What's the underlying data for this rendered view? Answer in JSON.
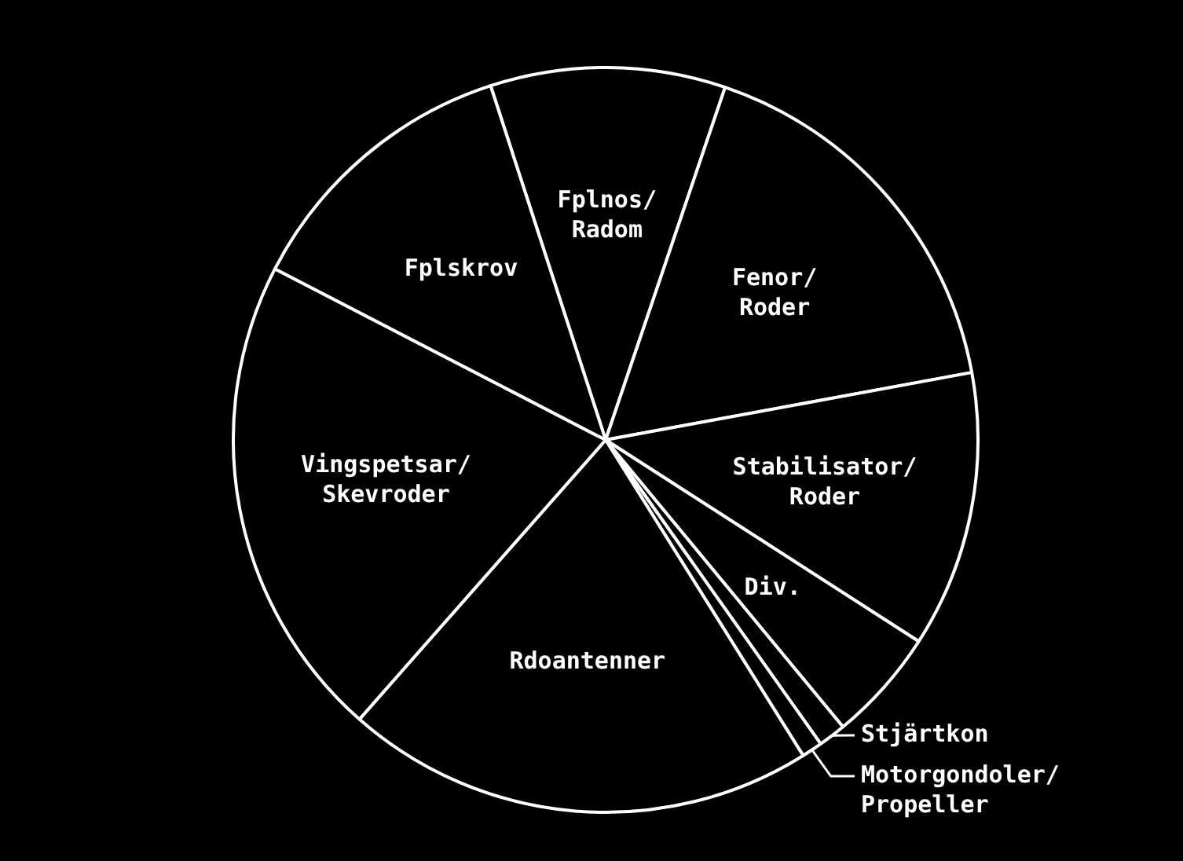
{
  "chart_data": {
    "type": "pie",
    "categories": [
      "Fplnos/Radom",
      "Fenor/Roder",
      "Stabilisator/Roder",
      "Div.",
      "Stjärtkon",
      "Motorgondoler/Propeller",
      "Rdoantenner",
      "Vingspetsar/Skevroder",
      "Fplskrov"
    ],
    "values": [
      10.2,
      16.9,
      12.0,
      4.9,
      1.2,
      0.9,
      20.4,
      21.1,
      12.4
    ],
    "colors": [
      "#000000",
      "#000000",
      "#000000",
      "#000000",
      "#000000",
      "#000000",
      "#000000",
      "#000000",
      "#000000"
    ],
    "legend": false
  }
}
